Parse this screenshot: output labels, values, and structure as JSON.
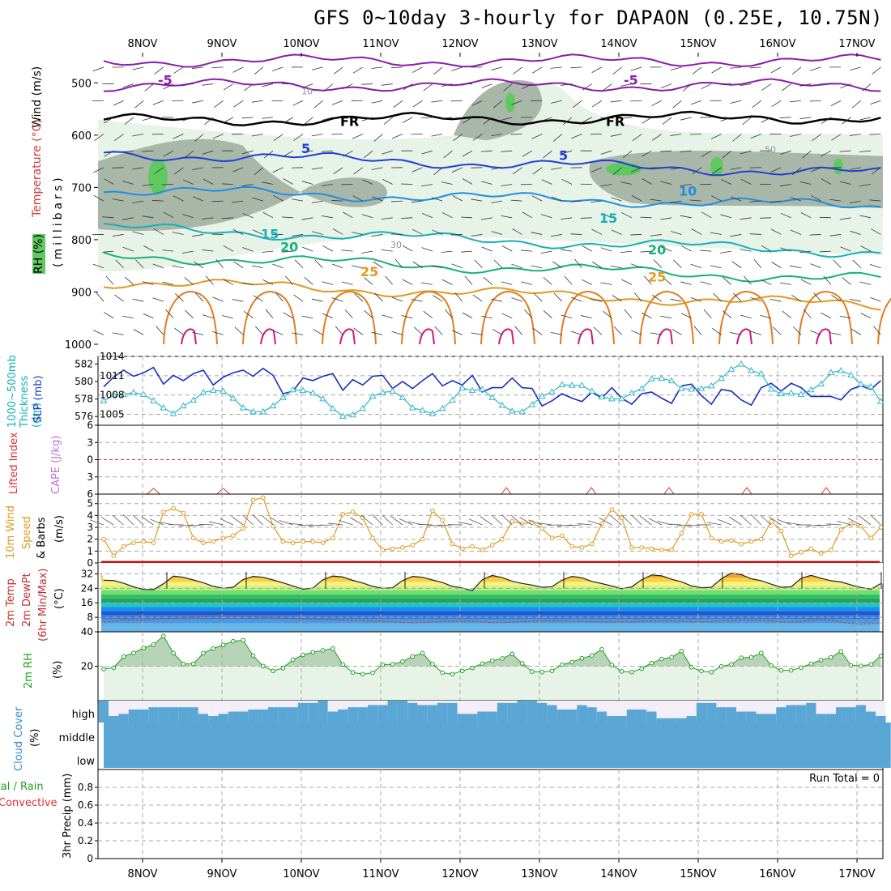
{
  "title": "GFS 0~10day 3-hourly for DAPAON (0.25E, 10.75N)",
  "dates": [
    "8NOV",
    "9NOV",
    "10NOV",
    "11NOV",
    "12NOV",
    "13NOV",
    "14NOV",
    "15NOV",
    "16NOV",
    "17NOV"
  ],
  "colors": {
    "grid": "#a8a8a8",
    "temp_fr": "#000000",
    "temp_m5": "#8a1ea8",
    "rh_dark": "#a9b7a9",
    "rh_mid": "#d2e2d2",
    "rh_light": "#e8f3e8",
    "rh_green": "#5fc95f"
  },
  "panels": {
    "upper": {
      "labels": {
        "wind": "Wind (m/s)",
        "temperature": "Temperature (°C)",
        "rh": "RH (%)",
        "millibars": "(millibars)"
      },
      "ylim_mb": [
        450,
        1000
      ],
      "y_ticks": [
        500,
        600,
        700,
        800,
        900,
        1000
      ],
      "contour_labels": [
        {
          "text": "-5",
          "color": "#8a1ea8"
        },
        {
          "text": "-5",
          "color": "#8a1ea8"
        },
        {
          "text": "FR",
          "color": "#000000"
        },
        {
          "text": "FR",
          "color": "#000000"
        },
        {
          "text": "5",
          "color": "#1f3fd6"
        },
        {
          "text": "5",
          "color": "#1f3fd6"
        },
        {
          "text": "10",
          "color": "#1e8fe0"
        },
        {
          "text": "15",
          "color": "#15b0b8"
        },
        {
          "text": "15",
          "color": "#15b0b8"
        },
        {
          "text": "20",
          "color": "#17b07a"
        },
        {
          "text": "20",
          "color": "#17b07a"
        },
        {
          "text": "25",
          "color": "#e09a20"
        },
        {
          "text": "25",
          "color": "#e09a20"
        },
        {
          "text": "30",
          "color": "#909090"
        },
        {
          "text": "50",
          "color": "#909090"
        },
        {
          "text": "10",
          "color": "#909090"
        }
      ]
    },
    "pressure": {
      "labels": {
        "thickness": "1000~500mb Thickness (dm)",
        "slp": "SLP (mb)"
      },
      "left_ticks": [
        576,
        578,
        580,
        582
      ],
      "right_ticks": [
        1005,
        1008,
        1011,
        1014
      ]
    },
    "stability": {
      "labels": {
        "li": "Lifted Index",
        "cape": "CAPE (J/kg)"
      },
      "y_ticks": [
        "6",
        "3",
        "0",
        "3",
        "6"
      ]
    },
    "wind10m": {
      "labels": {
        "wind": "10m Wind",
        "speed": "Speed",
        "barbs": "& Barbs",
        "unit": "(m/s)"
      },
      "y_ticks": [
        0,
        1,
        2,
        3,
        4,
        5
      ]
    },
    "temp2m": {
      "labels": {
        "temp": "2m Temp",
        "dewpt": "2m DewPt",
        "minmax": "(6hr Min/Max)",
        "unit": "(°C)"
      },
      "y_ticks": [
        8,
        16,
        24,
        32
      ]
    },
    "rh2m": {
      "labels": {
        "rh": "2m RH",
        "unit": "(%)"
      },
      "y_ticks": [
        20,
        40
      ]
    },
    "cloud": {
      "labels": {
        "cloud": "Cloud Cover",
        "unit": "(%)"
      },
      "levels": [
        "high",
        "middle",
        "low"
      ]
    },
    "precip": {
      "labels": {
        "total_rain": "Total / Rain",
        "convective": "Convective",
        "precip": "3hr Precip (mm)"
      },
      "run_total": "Run Total = 0",
      "y_ticks": [
        0,
        0.2,
        0.4,
        0.6,
        0.8
      ]
    }
  },
  "chart_data": [
    {
      "type": "line",
      "name": "1000-500mb thickness",
      "units": "dm",
      "ylim": [
        575,
        582
      ],
      "values": [
        579.4,
        580.5,
        581.3,
        580.6,
        581.0,
        581.6,
        579.7,
        580.7,
        580.1,
        580.9,
        581.3,
        579.6,
        580.5,
        581.0,
        581.3,
        580.6,
        581.5,
        580.7,
        578.6,
        578.9,
        580.4,
        580.1,
        580.6,
        580.9,
        579.0,
        580.2,
        579.6,
        580.6,
        580.7,
        579.2,
        580.0,
        579.2,
        580.1,
        580.9,
        579.5,
        580.1,
        579.6,
        580.7,
        578.8,
        579.3,
        579.3,
        580.4,
        579.3,
        579.2,
        577.2,
        577.8,
        578.6,
        578.1,
        577.7,
        578.8,
        578.1,
        579.3,
        578.1,
        577.4,
        578.6,
        578.8,
        578.1,
        577.5,
        579.5,
        579.7,
        578.4,
        577.4,
        579.1,
        578.9,
        577.9,
        577.3,
        579.3,
        579.8,
        578.9,
        579.8,
        579.3,
        578.3,
        578.3,
        578.3,
        577.9,
        579.1,
        579.5,
        579.1,
        580.1
      ]
    },
    {
      "type": "line",
      "name": "SLP",
      "units": "mb",
      "ylim": [
        1003,
        1014
      ],
      "values": [
        1007.1,
        1008.0,
        1008.1,
        1008.4,
        1008.1,
        1007.1,
        1006.0,
        1005.1,
        1006.3,
        1007.2,
        1008.4,
        1008.7,
        1008.6,
        1007.5,
        1006.0,
        1005.4,
        1005.4,
        1006.3,
        1007.6,
        1008.8,
        1008.7,
        1008.3,
        1007.4,
        1005.9,
        1004.7,
        1004.9,
        1005.9,
        1007.8,
        1008.4,
        1008.6,
        1007.6,
        1006.0,
        1005.6,
        1005.1,
        1005.9,
        1007.2,
        1009.1,
        1008.7,
        1008.9,
        1007.6,
        1006.4,
        1005.5,
        1005.4,
        1006.5,
        1007.8,
        1008.5,
        1009.6,
        1009.5,
        1009.5,
        1008.6,
        1007.7,
        1007.4,
        1007.4,
        1008.3,
        1009.0,
        1010.5,
        1010.6,
        1010.2,
        1009.0,
        1008.9,
        1009.0,
        1009.4,
        1010.6,
        1012.0,
        1012.8,
        1011.8,
        1011.3,
        1008.9,
        1008.2,
        1008.3,
        1008.1,
        1008.8,
        1009.7,
        1011.5,
        1011.8,
        1011.1,
        1009.7,
        1009.3,
        1007.0
      ]
    },
    {
      "type": "line",
      "name": "Lifted Index",
      "units": "K",
      "ylim": [
        -6,
        6
      ],
      "values": [
        6,
        6,
        6,
        6,
        6,
        5,
        6,
        6,
        6,
        6,
        6,
        6,
        5,
        6,
        6,
        6,
        6,
        6,
        6,
        6,
        6,
        6,
        6,
        6,
        6,
        6,
        6,
        6,
        6,
        6,
        6,
        6,
        6,
        6,
        6,
        6,
        6,
        6,
        6,
        6,
        6,
        6,
        6,
        6,
        6,
        6,
        6,
        6,
        6,
        6,
        6,
        6,
        6,
        6,
        6,
        6,
        6,
        6,
        6,
        6,
        6,
        6,
        6,
        6,
        6,
        6,
        6,
        6,
        6,
        6,
        6,
        6,
        6,
        6,
        6,
        6,
        6,
        6,
        6
      ]
    },
    {
      "type": "line",
      "name": "10m wind speed",
      "units": "m/s",
      "ylim": [
        0,
        5.8
      ],
      "values": [
        2.0,
        0.6,
        1.4,
        1.7,
        1.8,
        1.7,
        4.3,
        4.6,
        4.2,
        2.1,
        1.7,
        1.8,
        2.1,
        2.3,
        2.9,
        5.3,
        5.5,
        3.1,
        1.8,
        1.7,
        1.8,
        1.8,
        1.7,
        2.1,
        4.1,
        4.3,
        3.8,
        2.1,
        1.1,
        1.2,
        1.3,
        1.5,
        2.0,
        4.4,
        3.6,
        1.6,
        1.2,
        1.4,
        1.1,
        1.5,
        2.0,
        3.5,
        3.3,
        3.4,
        2.9,
        2.1,
        2.3,
        1.4,
        1.3,
        1.6,
        3.3,
        4.5,
        3.8,
        1.3,
        1.3,
        1.2,
        1.1,
        1.1,
        2.5,
        4.1,
        4.1,
        2.1,
        1.8,
        1.9,
        1.6,
        1.8,
        2.0,
        3.5,
        2.7,
        0.6,
        0.9,
        1.2,
        0.8,
        1.1,
        2.8,
        3.3,
        3.1,
        2.1,
        3.0
      ]
    },
    {
      "type": "area",
      "name": "2m Temp",
      "units": "°C",
      "ylim": [
        0,
        38
      ],
      "values": [
        28.5,
        28.3,
        26.8,
        24.8,
        23.4,
        23.3,
        26.5,
        30.7,
        30.1,
        28.6,
        27.1,
        25.1,
        24.0,
        24.6,
        28.9,
        30.6,
        30.1,
        28.6,
        27.0,
        25.3,
        23.5,
        24.1,
        28.7,
        30.8,
        30.2,
        28.4,
        26.9,
        25.1,
        24.0,
        24.3,
        28.3,
        30.6,
        30.1,
        28.6,
        27.2,
        25.1,
        24.2,
        22.7,
        28.8,
        31.1,
        29.9,
        27.9,
        26.7,
        25.8,
        24.6,
        24.9,
        28.5,
        30.6,
        29.8,
        27.8,
        26.6,
        25.3,
        23.8,
        24.8,
        28.8,
        31.4,
        30.9,
        29.0,
        27.6,
        25.3,
        24.3,
        24.6,
        29.3,
        32.4,
        31.5,
        29.3,
        28.2,
        26.3,
        24.6,
        24.8,
        29.5,
        31.2,
        29.5,
        28.2,
        27.5,
        25.9,
        24.5,
        23.5,
        26.6
      ]
    },
    {
      "type": "line",
      "name": "2m DewPt",
      "units": "°C",
      "ylim": [
        0,
        38
      ],
      "values": [
        5.3,
        5.8,
        6.6,
        6.5,
        6.4,
        6.8,
        7.2,
        7.4,
        7.7,
        8.0,
        8.2,
        8.5,
        8.6,
        8.5,
        8.4,
        8.4,
        8.0,
        7.8,
        7.6,
        7.2,
        7.0,
        6.9,
        6.8,
        6.7,
        6.5,
        6.3,
        6.1,
        6.0,
        5.8,
        5.6,
        5.2,
        5.0,
        5.0,
        5.5,
        5.6,
        5.8,
        6.0,
        5.8,
        5.5,
        5.0,
        5.0,
        5.4,
        5.6,
        5.8,
        6.0,
        6.1,
        6.0,
        5.7,
        5.7,
        5.6,
        5.5,
        5.4,
        5.5,
        5.4,
        5.7,
        6.0,
        6.0,
        5.9,
        5.7,
        5.6,
        5.6,
        5.6,
        5.9,
        6.1,
        6.3,
        6.5,
        6.2,
        6.0,
        5.5,
        5.3,
        5.6,
        6.4,
        6.8,
        6.5,
        5.3,
        4.6,
        4.3,
        4.5,
        4.8
      ]
    },
    {
      "type": "area",
      "name": "2m RH",
      "units": "%",
      "ylim": [
        0,
        40
      ],
      "values": [
        18.4,
        19.1,
        25.6,
        27.7,
        30.6,
        32.6,
        37.5,
        27.6,
        21.3,
        21.4,
        27.6,
        30.3,
        32.4,
        34.5,
        35.1,
        26.1,
        20.1,
        17.3,
        18.9,
        23.8,
        26.6,
        28.1,
        29.2,
        30.3,
        21.0,
        16.4,
        15.4,
        16.2,
        20.9,
        21.2,
        22.7,
        25.7,
        27.6,
        21.2,
        16.2,
        15.4,
        17.3,
        19.0,
        21.5,
        23.2,
        24.5,
        27.1,
        21.6,
        16.9,
        16.6,
        17.3,
        20.9,
        22.4,
        24.6,
        26.2,
        29.8,
        20.7,
        17.0,
        16.6,
        18.6,
        21.8,
        24.2,
        25.2,
        28.8,
        19.4,
        17.2,
        16.6,
        19.9,
        21.1,
        24.9,
        25.2,
        27.7,
        20.4,
        17.6,
        17.6,
        19.2,
        21.4,
        23.6,
        25.1,
        28.6,
        20.5,
        20.2,
        21.1,
        26.0
      ]
    },
    {
      "type": "bar",
      "name": "High cloud cover",
      "units": "%",
      "values": [
        100,
        30,
        40,
        60,
        60,
        70,
        70,
        70,
        70,
        70,
        40,
        30,
        40,
        50,
        50,
        60,
        60,
        70,
        70,
        70,
        90,
        90,
        100,
        50,
        60,
        70,
        70,
        80,
        80,
        100,
        100,
        90,
        80,
        80,
        90,
        90,
        40,
        40,
        50,
        50,
        90,
        90,
        100,
        100,
        90,
        80,
        60,
        60,
        80,
        70,
        50,
        30,
        30,
        60,
        60,
        50,
        20,
        20,
        20,
        30,
        90,
        90,
        70,
        70,
        50,
        50,
        40,
        40,
        70,
        80,
        80,
        90,
        40,
        40,
        70,
        70,
        80,
        50,
        30
      ]
    },
    {
      "type": "bar",
      "name": "Middle cloud cover",
      "units": "%",
      "values": [
        100,
        100,
        100,
        100,
        100,
        100,
        100,
        100,
        100,
        100,
        100,
        100,
        100,
        100,
        100,
        100,
        100,
        100,
        100,
        100,
        100,
        100,
        100,
        100,
        100,
        100,
        100,
        100,
        100,
        100,
        100,
        100,
        100,
        100,
        100,
        100,
        100,
        100,
        100,
        100,
        100,
        100,
        100,
        100,
        100,
        100,
        100,
        100,
        100,
        100,
        100,
        100,
        100,
        100,
        100,
        100,
        100,
        100,
        100,
        100,
        100,
        100,
        100,
        100,
        100,
        100,
        100,
        100,
        100,
        100,
        100,
        100,
        100,
        100,
        100,
        100,
        100,
        100,
        100
      ]
    },
    {
      "type": "bar",
      "name": "3hr Precip",
      "units": "mm",
      "ylim": [
        0,
        1
      ],
      "run_total": 0,
      "values": [
        0,
        0,
        0,
        0,
        0,
        0,
        0,
        0,
        0,
        0,
        0,
        0,
        0,
        0,
        0,
        0,
        0,
        0,
        0,
        0,
        0,
        0,
        0,
        0,
        0,
        0,
        0,
        0,
        0,
        0,
        0,
        0,
        0,
        0,
        0,
        0,
        0,
        0,
        0,
        0,
        0,
        0,
        0,
        0,
        0,
        0,
        0,
        0,
        0,
        0,
        0,
        0,
        0,
        0,
        0,
        0,
        0,
        0,
        0,
        0,
        0,
        0,
        0,
        0,
        0,
        0,
        0,
        0,
        0,
        0,
        0,
        0,
        0,
        0,
        0,
        0,
        0,
        0,
        0
      ]
    }
  ]
}
